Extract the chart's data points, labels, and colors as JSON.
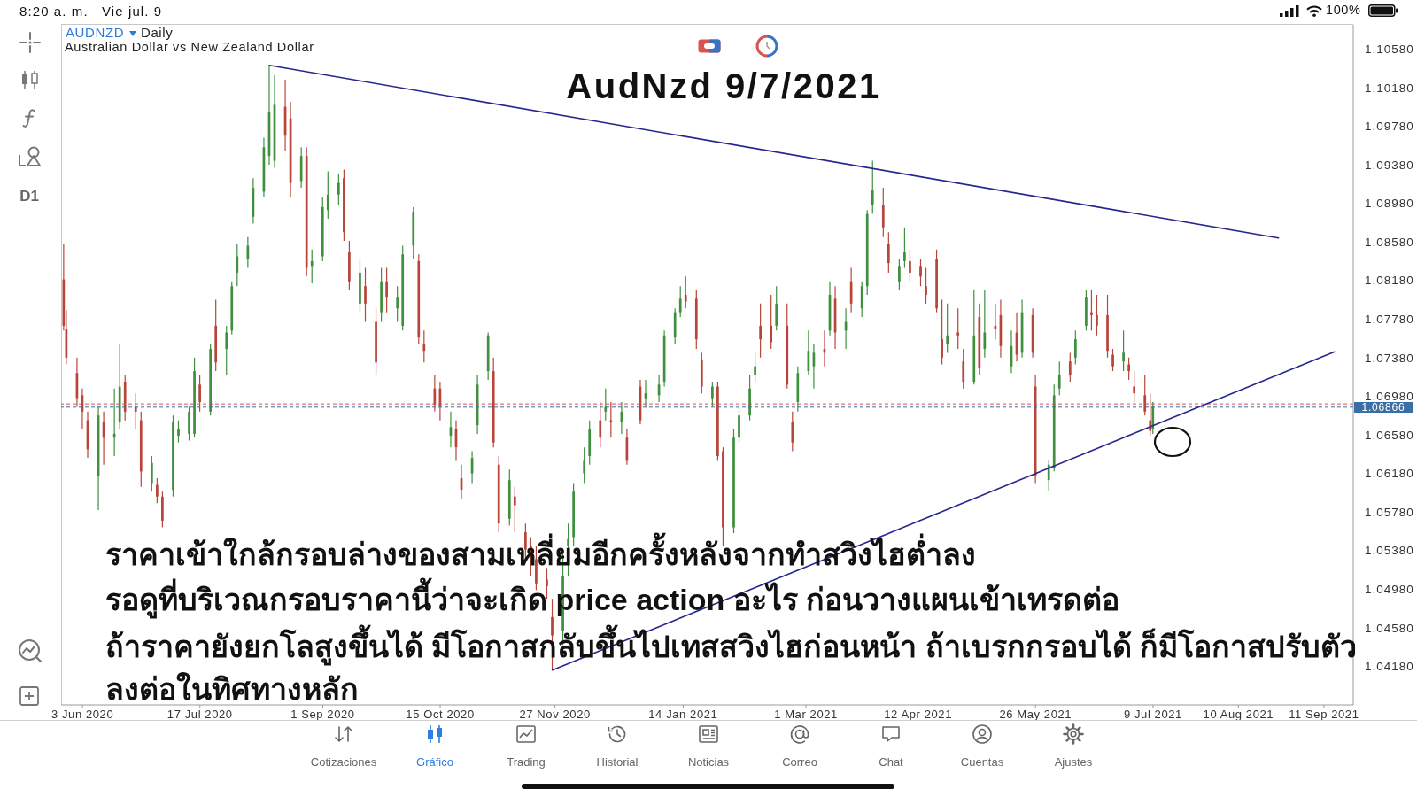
{
  "chart_data": {
    "type": "candlestick",
    "title": "AudNzd 9/7/2021",
    "annotations": [
      "ราคาเข้าใกล้กรอบล่างของสามเหลี่ยมอีกครั้งหลังจากทำสวิงไฮต่ำลง",
      "รอดูที่บริเวณกรอบราคานี้ว่าจะเกิด price action อะไร ก่อนวางแผนเข้าเทรดต่อ",
      "ถ้าราคายังยกโลสูงขึ้นได้ มีโอกาสกลับขึ้นไปเทสสวิงไฮก่อนหน้า ถ้าเบรกกรอบได้ ก็มีโอกาสปรับตัว",
      "ลงต่อในทิศทางหลัก",
      "AUDNZD",
      "Daily",
      "Australian Dollar vs New Zealand Dollar",
      "D1",
      "8:20 a. m.",
      "Vie jul. 9",
      "100%",
      "Cotizaciones",
      "Gráfico",
      "Trading",
      "Historial",
      "Noticias",
      "Correo",
      "Chat",
      "Cuentas",
      "Ajustes"
    ],
    "x": [
      "2020-05-27",
      "2020-05-28",
      "2020-06-01",
      "2020-06-03",
      "2020-06-05",
      "2020-06-09",
      "2020-06-11",
      "2020-06-15",
      "2020-06-17",
      "2020-06-19",
      "2020-06-23",
      "2020-06-25",
      "2020-06-29",
      "2020-07-01",
      "2020-07-03",
      "2020-07-07",
      "2020-07-09",
      "2020-07-13",
      "2020-07-15",
      "2020-07-17",
      "2020-07-21",
      "2020-07-23",
      "2020-07-27",
      "2020-07-29",
      "2020-07-31",
      "2020-08-04",
      "2020-08-06",
      "2020-08-10",
      "2020-08-12",
      "2020-08-14",
      "2020-08-18",
      "2020-08-20",
      "2020-08-24",
      "2020-08-26",
      "2020-08-28",
      "2020-09-01",
      "2020-09-03",
      "2020-09-07",
      "2020-09-09",
      "2020-09-11",
      "2020-09-15",
      "2020-09-17",
      "2020-09-21",
      "2020-09-23",
      "2020-09-25",
      "2020-09-29",
      "2020-10-01",
      "2020-10-05",
      "2020-10-07",
      "2020-10-09",
      "2020-10-13",
      "2020-10-15",
      "2020-10-19",
      "2020-10-21",
      "2020-10-23",
      "2020-10-27",
      "2020-10-29",
      "2020-11-02",
      "2020-11-04",
      "2020-11-06",
      "2020-11-10",
      "2020-11-12",
      "2020-11-16",
      "2020-11-18",
      "2020-11-20",
      "2020-11-24",
      "2020-11-26",
      "2020-11-30",
      "2020-12-02",
      "2020-12-04",
      "2020-12-08",
      "2020-12-10",
      "2020-12-14",
      "2020-12-16",
      "2020-12-18",
      "2020-12-22",
      "2020-12-24",
      "2020-12-29",
      "2020-12-31",
      "2021-01-05",
      "2021-01-07",
      "2021-01-11",
      "2021-01-13",
      "2021-01-15",
      "2021-01-19",
      "2021-01-21",
      "2021-01-25",
      "2021-01-27",
      "2021-01-29",
      "2021-02-02",
      "2021-02-04",
      "2021-02-08",
      "2021-02-10",
      "2021-02-12",
      "2021-02-16",
      "2021-02-18",
      "2021-02-22",
      "2021-02-24",
      "2021-02-26",
      "2021-03-02",
      "2021-03-04",
      "2021-03-08",
      "2021-03-10",
      "2021-03-12",
      "2021-03-16",
      "2021-03-18",
      "2021-03-22",
      "2021-03-24",
      "2021-03-26",
      "2021-03-30",
      "2021-04-01",
      "2021-04-05",
      "2021-04-07",
      "2021-04-09",
      "2021-04-13",
      "2021-04-15",
      "2021-04-19",
      "2021-04-21",
      "2021-04-23",
      "2021-04-27",
      "2021-04-29",
      "2021-05-03",
      "2021-05-05",
      "2021-05-07",
      "2021-05-11",
      "2021-05-13",
      "2021-05-17",
      "2021-05-19",
      "2021-05-21",
      "2021-05-25",
      "2021-05-26",
      "2021-05-31",
      "2021-06-02",
      "2021-06-04",
      "2021-06-08",
      "2021-06-10",
      "2021-06-14",
      "2021-06-16",
      "2021-06-18",
      "2021-06-22",
      "2021-06-24",
      "2021-06-28",
      "2021-06-30",
      "2021-07-02",
      "2021-07-06",
      "2021-07-08",
      "2021-07-09"
    ],
    "ohlc": [
      [
        1.0819,
        1.0856,
        1.0766,
        1.0771
      ],
      [
        1.0768,
        1.0787,
        1.0731,
        1.0738
      ],
      [
        1.0722,
        1.0738,
        1.0687,
        1.0696
      ],
      [
        1.0699,
        1.0706,
        1.0664,
        1.0682
      ],
      [
        1.0673,
        1.0682,
        1.0634,
        1.0643
      ],
      [
        1.0615,
        1.0687,
        1.058,
        1.0678
      ],
      [
        1.0671,
        1.0682,
        1.0627,
        1.0655
      ],
      [
        1.0655,
        1.0706,
        1.0636,
        1.0659
      ],
      [
        1.0671,
        1.0752,
        1.0664,
        1.0708
      ],
      [
        1.0713,
        1.072,
        1.0673,
        1.0682
      ],
      [
        1.0687,
        1.0701,
        1.0664,
        1.0682
      ],
      [
        1.0673,
        1.0682,
        1.0604,
        1.062
      ],
      [
        1.0608,
        1.0636,
        1.0599,
        1.0629
      ],
      [
        1.0606,
        1.0613,
        1.0587,
        1.0594
      ],
      [
        1.0594,
        1.0599,
        1.0562,
        1.0569
      ],
      [
        1.0601,
        1.0678,
        1.0594,
        1.0671
      ],
      [
        1.0657,
        1.0673,
        1.065,
        1.0664
      ],
      [
        1.0659,
        1.0687,
        1.0652,
        1.0682
      ],
      [
        1.0659,
        1.0738,
        1.0655,
        1.0724
      ],
      [
        1.071,
        1.072,
        1.0682,
        1.0692
      ],
      [
        1.0682,
        1.0752,
        1.0678,
        1.0747
      ],
      [
        1.0771,
        1.0798,
        1.0724,
        1.0733
      ],
      [
        1.0747,
        1.0771,
        1.072,
        1.0764
      ],
      [
        1.0766,
        1.0817,
        1.0762,
        1.0812
      ],
      [
        1.0826,
        1.0856,
        1.0812,
        1.0843
      ],
      [
        1.084,
        1.0863,
        1.0831,
        1.0854
      ],
      [
        1.0884,
        1.0924,
        1.0877,
        1.0914
      ],
      [
        1.091,
        1.0966,
        1.0905,
        1.0956
      ],
      [
        1.0947,
        1.1041,
        1.0938,
        1.0993
      ],
      [
        1.0942,
        1.1031,
        1.0935,
        1.1
      ],
      [
        1.0998,
        1.1026,
        1.0952,
        1.0968
      ],
      [
        1.0986,
        1.1003,
        1.0905,
        1.0919
      ],
      [
        1.0921,
        1.0956,
        1.0914,
        1.0947
      ],
      [
        1.0947,
        1.0956,
        1.0822,
        1.0831
      ],
      [
        1.0833,
        1.085,
        1.0815,
        1.0838
      ],
      [
        1.0843,
        1.0905,
        1.0838,
        1.0894
      ],
      [
        1.0891,
        1.0931,
        1.0882,
        1.0907
      ],
      [
        1.0907,
        1.0928,
        1.0896,
        1.0919
      ],
      [
        1.0924,
        1.0933,
        1.0859,
        1.0868
      ],
      [
        1.0847,
        1.0859,
        1.0808,
        1.0817
      ],
      [
        1.0794,
        1.084,
        1.0785,
        1.0826
      ],
      [
        1.0812,
        1.0831,
        1.0775,
        1.0794
      ],
      [
        1.0775,
        1.0789,
        1.072,
        1.0733
      ],
      [
        1.0785,
        1.0831,
        1.0775,
        1.0817
      ],
      [
        1.0817,
        1.0831,
        1.0785,
        1.0801
      ],
      [
        1.0789,
        1.0812,
        1.0775,
        1.0801
      ],
      [
        1.0771,
        1.0854,
        1.0766,
        1.0845
      ],
      [
        1.0854,
        1.0894,
        1.084,
        1.0889
      ],
      [
        1.0838,
        1.0845,
        1.0752,
        1.0759
      ],
      [
        1.0752,
        1.0766,
        1.0733,
        1.0745
      ],
      [
        1.0706,
        1.072,
        1.0682,
        1.0689
      ],
      [
        1.0706,
        1.0713,
        1.0673,
        1.0687
      ],
      [
        1.0657,
        1.0682,
        1.0645,
        1.0666
      ],
      [
        1.0664,
        1.0673,
        1.0631,
        1.0645
      ],
      [
        1.0613,
        1.0627,
        1.0592,
        1.0601
      ],
      [
        1.0618,
        1.0641,
        1.0608,
        1.0634
      ],
      [
        1.0668,
        1.072,
        1.0659,
        1.071
      ],
      [
        1.0724,
        1.0764,
        1.0715,
        1.0761
      ],
      [
        1.0724,
        1.0738,
        1.0645,
        1.065
      ],
      [
        1.0627,
        1.0636,
        1.0557,
        1.0566
      ],
      [
        1.0571,
        1.0622,
        1.0564,
        1.0611
      ],
      [
        1.0594,
        1.0604,
        1.0557,
        1.0585
      ],
      [
        1.0557,
        1.0566,
        1.0529,
        1.0539
      ],
      [
        1.0543,
        1.0552,
        1.0511,
        1.0529
      ],
      [
        1.0529,
        1.0543,
        1.0497,
        1.0504
      ],
      [
        1.0508,
        1.052,
        1.0488,
        1.0501
      ],
      [
        1.0469,
        1.0488,
        1.0414,
        1.045
      ],
      [
        1.0455,
        1.0534,
        1.044,
        1.0511
      ],
      [
        1.0543,
        1.0566,
        1.0511,
        1.055
      ],
      [
        1.0552,
        1.0608,
        1.0543,
        1.0599
      ],
      [
        1.0618,
        1.0645,
        1.0608,
        1.0631
      ],
      [
        1.0636,
        1.0673,
        1.0627,
        1.0664
      ],
      [
        1.0673,
        1.0692,
        1.0645,
        1.0655
      ],
      [
        1.0682,
        1.0706,
        1.0673,
        1.0687
      ],
      [
        1.0673,
        1.0692,
        1.0655,
        1.0671
      ],
      [
        1.0671,
        1.0692,
        1.0659,
        1.0682
      ],
      [
        1.0655,
        1.0664,
        1.0627,
        1.0631
      ],
      [
        1.0708,
        1.0715,
        1.0669,
        1.0673
      ],
      [
        1.0696,
        1.0715,
        1.0687,
        1.0701
      ],
      [
        1.0699,
        1.072,
        1.0692,
        1.071
      ],
      [
        1.0713,
        1.0766,
        1.0708,
        1.0761
      ],
      [
        1.0759,
        1.0789,
        1.0752,
        1.0785
      ],
      [
        1.0785,
        1.0812,
        1.078,
        1.0799
      ],
      [
        1.0803,
        1.0822,
        1.0789,
        1.0796
      ],
      [
        1.0799,
        1.0808,
        1.0747,
        1.0757
      ],
      [
        1.0736,
        1.0743,
        1.0701,
        1.0708
      ],
      [
        1.0696,
        1.0713,
        1.0687,
        1.0708
      ],
      [
        1.0708,
        1.0713,
        1.0631,
        1.0636
      ],
      [
        1.0641,
        1.0645,
        1.0543,
        1.0562
      ],
      [
        1.0562,
        1.0664,
        1.0556,
        1.0655
      ],
      [
        1.0655,
        1.0687,
        1.065,
        1.0678
      ],
      [
        1.0678,
        1.072,
        1.0673,
        1.0706
      ],
      [
        1.072,
        1.0743,
        1.0713,
        1.0729
      ],
      [
        1.0771,
        1.0794,
        1.0738,
        1.0757
      ],
      [
        1.0771,
        1.0803,
        1.0747,
        1.0754
      ],
      [
        1.0771,
        1.0812,
        1.0766,
        1.0794
      ],
      [
        1.0771,
        1.0794,
        1.0706,
        1.071
      ],
      [
        1.0671,
        1.0682,
        1.0641,
        1.065
      ],
      [
        1.0692,
        1.0729,
        1.0682,
        1.0722
      ],
      [
        1.0724,
        1.0766,
        1.072,
        1.0745
      ],
      [
        1.0729,
        1.0752,
        1.0706,
        1.0743
      ],
      [
        1.0747,
        1.0766,
        1.0729,
        1.0743
      ],
      [
        1.0766,
        1.0817,
        1.0761,
        1.0803
      ],
      [
        1.0799,
        1.0812,
        1.0747,
        1.0764
      ],
      [
        1.0766,
        1.0789,
        1.0747,
        1.0775
      ],
      [
        1.0817,
        1.0831,
        1.0785,
        1.0794
      ],
      [
        1.0789,
        1.0817,
        1.078,
        1.0812
      ],
      [
        1.0812,
        1.0891,
        1.0803,
        1.0887
      ],
      [
        1.0896,
        1.0942,
        1.0887,
        1.0912
      ],
      [
        1.0896,
        1.0914,
        1.0863,
        1.0873
      ],
      [
        1.0856,
        1.0868,
        1.0826,
        1.0836
      ],
      [
        1.0817,
        1.084,
        1.0808,
        1.0833
      ],
      [
        1.0838,
        1.0873,
        1.0831,
        1.0847
      ],
      [
        1.0838,
        1.085,
        1.0817,
        1.0826
      ],
      [
        1.0833,
        1.084,
        1.0812,
        1.0822
      ],
      [
        1.0812,
        1.0831,
        1.0794,
        1.0803
      ],
      [
        1.084,
        1.085,
        1.0785,
        1.0789
      ],
      [
        1.0757,
        1.0798,
        1.0731,
        1.0738
      ],
      [
        1.0752,
        1.0794,
        1.0743,
        1.0761
      ],
      [
        1.0764,
        1.0789,
        1.0747,
        1.0761
      ],
      [
        1.0734,
        1.0747,
        1.0706,
        1.0713
      ],
      [
        1.0713,
        1.0808,
        1.071,
        1.0761
      ],
      [
        1.078,
        1.0794,
        1.072,
        1.0727
      ],
      [
        1.0747,
        1.0808,
        1.0738,
        1.0764
      ],
      [
        1.0771,
        1.0794,
        1.0757,
        1.0768
      ],
      [
        1.0782,
        1.0798,
        1.0738,
        1.075
      ],
      [
        1.0729,
        1.0766,
        1.0722,
        1.075
      ],
      [
        1.0764,
        1.0785,
        1.0734,
        1.0741
      ],
      [
        1.0743,
        1.0798,
        1.0738,
        1.0785
      ],
      [
        1.0782,
        1.0789,
        1.0738,
        1.0743
      ],
      [
        1.0708,
        1.072,
        1.0608,
        1.0615
      ],
      [
        1.0611,
        1.0632,
        1.06,
        1.0627
      ],
      [
        1.0624,
        1.071,
        1.062,
        1.0699
      ],
      [
        1.0706,
        1.0734,
        1.0699,
        1.072
      ],
      [
        1.0734,
        1.0743,
        1.0713,
        1.072
      ],
      [
        1.0738,
        1.0766,
        1.0731,
        1.0757
      ],
      [
        1.0771,
        1.0808,
        1.0766,
        1.0801
      ],
      [
        1.0785,
        1.0808,
        1.0766,
        1.0782
      ],
      [
        1.0782,
        1.0803,
        1.0761,
        1.0771
      ],
      [
        1.0782,
        1.0803,
        1.0738,
        1.0745
      ],
      [
        1.0741,
        1.0747,
        1.0724,
        1.0729
      ],
      [
        1.0734,
        1.0766,
        1.0724,
        1.0743
      ],
      [
        1.0731,
        1.0738,
        1.0715,
        1.0724
      ],
      [
        1.0708,
        1.0724,
        1.0692,
        1.0701
      ],
      [
        1.0699,
        1.072,
        1.0678,
        1.0682
      ],
      [
        1.0673,
        1.0701,
        1.0657,
        1.0662
      ],
      [
        1.0664,
        1.0692,
        1.0659,
        1.0687
      ]
    ],
    "colors": [
      "#b8453a",
      "#b8453a",
      "#b8453a",
      "#b8453a",
      "#b8453a",
      "#3f8f3f",
      "#b8453a",
      "#3f8f3f",
      "#3f8f3f",
      "#b8453a",
      "#b8453a",
      "#b8453a",
      "#3f8f3f",
      "#b8453a",
      "#b8453a",
      "#3f8f3f",
      "#3f8f3f",
      "#3f8f3f",
      "#3f8f3f",
      "#b8453a",
      "#3f8f3f",
      "#b8453a",
      "#3f8f3f",
      "#3f8f3f",
      "#3f8f3f",
      "#3f8f3f",
      "#3f8f3f",
      "#3f8f3f",
      "#3f8f3f",
      "#3f8f3f",
      "#b8453a",
      "#b8453a",
      "#3f8f3f",
      "#b8453a",
      "#3f8f3f",
      "#3f8f3f",
      "#3f8f3f",
      "#3f8f3f",
      "#b8453a",
      "#b8453a",
      "#3f8f3f",
      "#b8453a",
      "#b8453a",
      "#3f8f3f",
      "#b8453a",
      "#3f8f3f",
      "#3f8f3f",
      "#3f8f3f",
      "#b8453a",
      "#b8453a",
      "#b8453a",
      "#b8453a",
      "#3f8f3f",
      "#b8453a",
      "#b8453a",
      "#3f8f3f",
      "#3f8f3f",
      "#3f8f3f",
      "#b8453a",
      "#b8453a",
      "#3f8f3f",
      "#b8453a",
      "#b8453a",
      "#b8453a",
      "#b8453a",
      "#b8453a",
      "#b8453a",
      "#3f8f3f",
      "#3f8f3f",
      "#3f8f3f",
      "#3f8f3f",
      "#3f8f3f",
      "#b8453a",
      "#3f8f3f",
      "#b8453a",
      "#3f8f3f",
      "#b8453a",
      "#b8453a",
      "#3f8f3f",
      "#3f8f3f",
      "#3f8f3f",
      "#3f8f3f",
      "#3f8f3f",
      "#b8453a",
      "#b8453a",
      "#b8453a",
      "#3f8f3f",
      "#b8453a",
      "#b8453a",
      "#3f8f3f",
      "#3f8f3f",
      "#3f8f3f",
      "#3f8f3f",
      "#b8453a",
      "#b8453a",
      "#3f8f3f",
      "#b8453a",
      "#b8453a",
      "#3f8f3f",
      "#3f8f3f",
      "#3f8f3f",
      "#b8453a",
      "#3f8f3f",
      "#b8453a",
      "#3f8f3f",
      "#b8453a",
      "#3f8f3f",
      "#3f8f3f",
      "#3f8f3f",
      "#b8453a",
      "#b8453a",
      "#3f8f3f",
      "#3f8f3f",
      "#b8453a",
      "#b8453a",
      "#b8453a",
      "#b8453a",
      "#b8453a",
      "#3f8f3f",
      "#b8453a",
      "#b8453a",
      "#3f8f3f",
      "#b8453a",
      "#3f8f3f",
      "#b8453a",
      "#b8453a",
      "#3f8f3f",
      "#b8453a",
      "#3f8f3f",
      "#b8453a",
      "#b8453a",
      "#3f8f3f",
      "#3f8f3f",
      "#3f8f3f",
      "#b8453a",
      "#3f8f3f",
      "#3f8f3f",
      "#b8453a",
      "#b8453a",
      "#b8453a",
      "#b8453a",
      "#3f8f3f",
      "#b8453a",
      "#b8453a",
      "#b8453a",
      "#b8453a",
      "#3f8f3f"
    ],
    "series": [
      {
        "type": "line",
        "color": "#26268f",
        "x": [
          "2020-08-12",
          "2021-08-25"
        ],
        "values": [
          1.1041,
          1.0862
        ]
      },
      {
        "type": "line",
        "color": "#26268f",
        "x": [
          "2020-11-26",
          "2021-09-15"
        ],
        "values": [
          1.0414,
          1.0744
        ]
      }
    ],
    "xlim": [
      "2020-05-26",
      "2021-09-22"
    ],
    "xticks": [
      {
        "value": "2020-06-03",
        "label": "3 Jun 2020"
      },
      {
        "value": "2020-07-17",
        "label": "17 Jul 2020"
      },
      {
        "value": "2020-09-01",
        "label": "1 Sep 2020"
      },
      {
        "value": "2020-10-15",
        "label": "15 Oct 2020"
      },
      {
        "value": "2020-11-27",
        "label": "27 Nov 2020"
      },
      {
        "value": "2021-01-14",
        "label": "14 Jan 2021"
      },
      {
        "value": "2021-03-01",
        "label": "1 Mar 2021"
      },
      {
        "value": "2021-04-12",
        "label": "12 Apr 2021"
      },
      {
        "value": "2021-05-26",
        "label": "26 May 2021"
      },
      {
        "value": "2021-07-09",
        "label": "9 Jul 2021"
      },
      {
        "value": "2021-08-10",
        "label": "10 Aug 2021"
      },
      {
        "value": "2021-09-11",
        "label": "11 Sep 2021"
      }
    ],
    "ylim": [
      1.0378,
      1.1083
    ],
    "yticks": [
      {
        "value": 1.1058,
        "label": "1.10580"
      },
      {
        "value": 1.1018,
        "label": "1.10180"
      },
      {
        "value": 1.0978,
        "label": "1.09780"
      },
      {
        "value": 1.0938,
        "label": "1.09380"
      },
      {
        "value": 1.0898,
        "label": "1.08980"
      },
      {
        "value": 1.0858,
        "label": "1.08580"
      },
      {
        "value": 1.0818,
        "label": "1.08180"
      },
      {
        "value": 1.0778,
        "label": "1.07780"
      },
      {
        "value": 1.0738,
        "label": "1.07380"
      },
      {
        "value": 1.0698,
        "label": "1.06980"
      },
      {
        "value": 1.0658,
        "label": "1.06580"
      },
      {
        "value": 1.0618,
        "label": "1.06180"
      },
      {
        "value": 1.0578,
        "label": "1.05780"
      },
      {
        "value": 1.0538,
        "label": "1.05380"
      },
      {
        "value": 1.0498,
        "label": "1.04980"
      },
      {
        "value": 1.0458,
        "label": "1.04580"
      },
      {
        "value": 1.0418,
        "label": "1.04180"
      }
    ],
    "ref_lines": [
      {
        "axis": "y",
        "value": 1.069,
        "color": "#d9534f",
        "line_style": "dashed"
      },
      {
        "axis": "y",
        "value": 1.06866,
        "label": "1.06866",
        "color": "#3c6ea6",
        "line_style": "dashed"
      }
    ]
  }
}
